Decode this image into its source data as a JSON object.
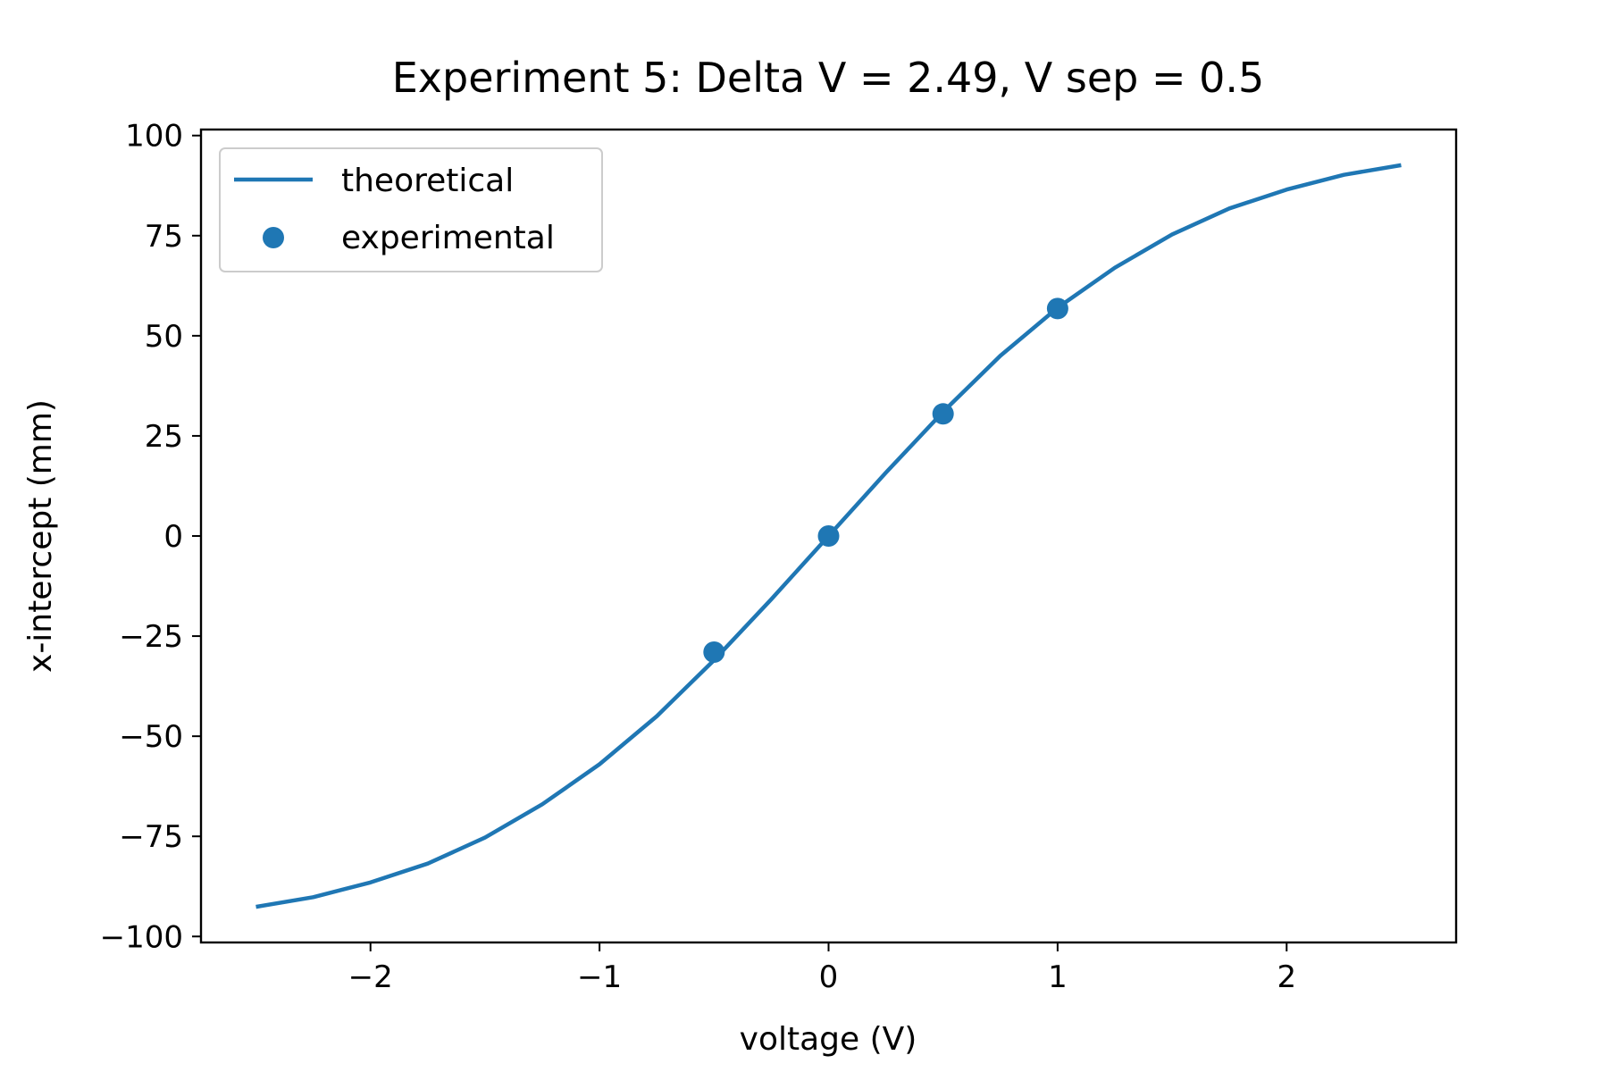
{
  "chart_data": {
    "type": "line",
    "title": "Experiment 5: Delta V = 2.49, V sep = 0.5",
    "xlabel": "voltage (V)",
    "ylabel": "x-intercept (mm)",
    "xlim": [
      -2.74,
      2.74
    ],
    "ylim": [
      -101.5,
      101.5
    ],
    "x_ticks": [
      -2,
      -1,
      0,
      1,
      2
    ],
    "x_tick_labels": [
      "−2",
      "−1",
      "0",
      "1",
      "2"
    ],
    "y_ticks": [
      -100,
      -75,
      -50,
      -25,
      0,
      25,
      50,
      75,
      100
    ],
    "y_tick_labels": [
      "−100",
      "−75",
      "−50",
      "−25",
      "0",
      "25",
      "50",
      "75",
      "100"
    ],
    "grid": false,
    "legend": {
      "position": "upper-left",
      "entries": [
        "theoretical",
        "experimental"
      ]
    },
    "series": [
      {
        "name": "theoretical",
        "kind": "line",
        "color": "#1f77b4",
        "x": [
          -2.5,
          -2.25,
          -2.0,
          -1.75,
          -1.5,
          -1.25,
          -1.0,
          -0.75,
          -0.5,
          -0.25,
          0.0,
          0.25,
          0.5,
          0.75,
          1.0,
          1.25,
          1.5,
          1.75,
          2.0,
          2.25,
          2.5
        ],
        "y": [
          -92.6,
          -90.2,
          -86.5,
          -81.8,
          -75.3,
          -67.0,
          -57.0,
          -45.0,
          -31.0,
          -15.8,
          0.0,
          15.8,
          31.0,
          45.0,
          57.0,
          67.0,
          75.3,
          81.8,
          86.5,
          90.2,
          92.6
        ]
      },
      {
        "name": "experimental",
        "kind": "scatter",
        "color": "#1f77b4",
        "x": [
          -0.5,
          0.0,
          0.5,
          1.0
        ],
        "y": [
          -29.0,
          0.0,
          30.5,
          56.8
        ]
      }
    ]
  }
}
